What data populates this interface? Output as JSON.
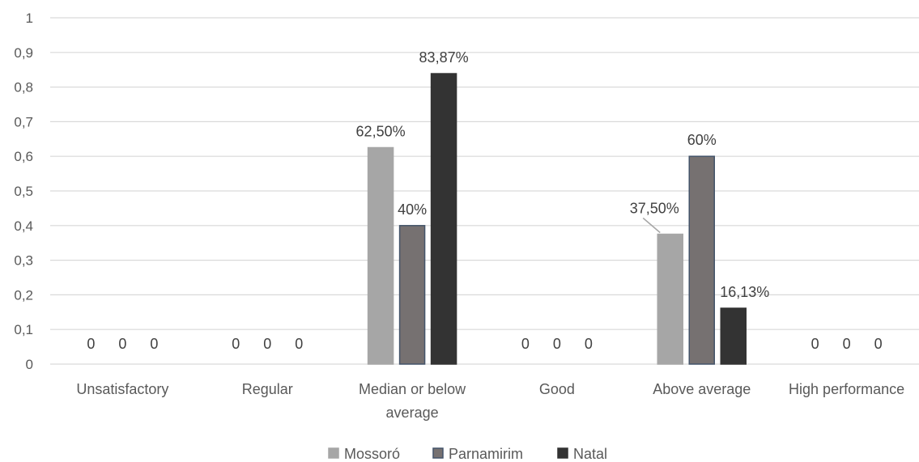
{
  "chart_data": {
    "type": "bar",
    "categories": [
      "Unsatisfactory",
      "Regular",
      "Median or below average",
      "Good",
      "Above average",
      "High performance"
    ],
    "category_lines": [
      [
        "Unsatisfactory"
      ],
      [
        "Regular"
      ],
      [
        "Median or below",
        "average"
      ],
      [
        "Good"
      ],
      [
        "Above average"
      ],
      [
        "High performance"
      ]
    ],
    "series": [
      {
        "name": "Mossoró",
        "values": [
          0,
          0,
          0.625,
          0,
          0.375,
          0
        ],
        "labels": [
          "0",
          "0",
          "62,50%",
          "0",
          "37,50%",
          "0"
        ],
        "color": "#a6a6a6",
        "stroke": "#a6a6a6"
      },
      {
        "name": "Parnamirim",
        "values": [
          0,
          0,
          0.4,
          0,
          0.6,
          0
        ],
        "labels": [
          "0",
          "0",
          "40%",
          "0",
          "60%",
          "0"
        ],
        "color": "#767171",
        "stroke": "#44546a"
      },
      {
        "name": "Natal",
        "values": [
          0,
          0,
          0.8387,
          0,
          0.1613,
          0
        ],
        "labels": [
          "0",
          "0",
          "83,87%",
          "0",
          "16,13%",
          "0"
        ],
        "color": "#333333",
        "stroke": "#333333"
      }
    ],
    "y_ticks": [
      "0",
      "0,1",
      "0,2",
      "0,3",
      "0,4",
      "0,5",
      "0,6",
      "0,7",
      "0,8",
      "0,9",
      "1"
    ],
    "ylim": [
      0,
      1
    ],
    "grid": true,
    "legend_position": "bottom",
    "title": "",
    "xlabel": "",
    "ylabel": ""
  }
}
